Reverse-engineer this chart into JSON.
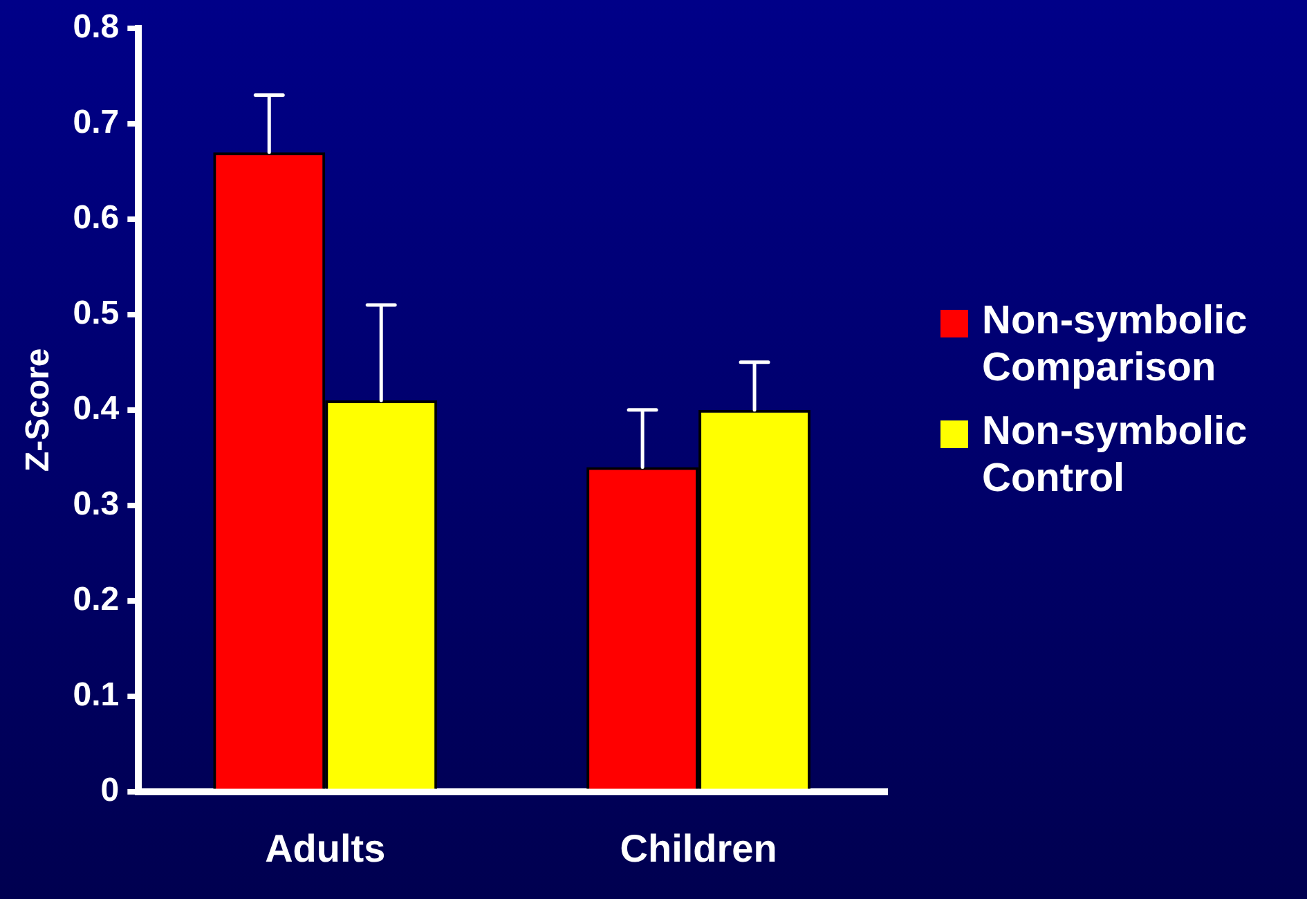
{
  "chart_data": {
    "type": "bar",
    "ylabel": "Z-Score",
    "categories": [
      "Adults",
      "Children"
    ],
    "series": [
      {
        "name": "Non-symbolic Comparison",
        "color": "#ff0000",
        "values": [
          0.67,
          0.34
        ],
        "errors": [
          [
            0.67,
            0.73
          ],
          [
            0.34,
            0.4
          ]
        ]
      },
      {
        "name": "Non-symbolic Control",
        "color": "#ffff00",
        "values": [
          0.41,
          0.4
        ],
        "errors": [
          [
            0.41,
            0.51
          ],
          [
            0.4,
            0.45
          ]
        ]
      }
    ],
    "ylim": [
      0,
      0.8
    ],
    "yticks": [
      0,
      0.1,
      0.2,
      0.3,
      0.4,
      0.5,
      0.6,
      0.7,
      0.8
    ],
    "grid": false,
    "legend": "right"
  }
}
